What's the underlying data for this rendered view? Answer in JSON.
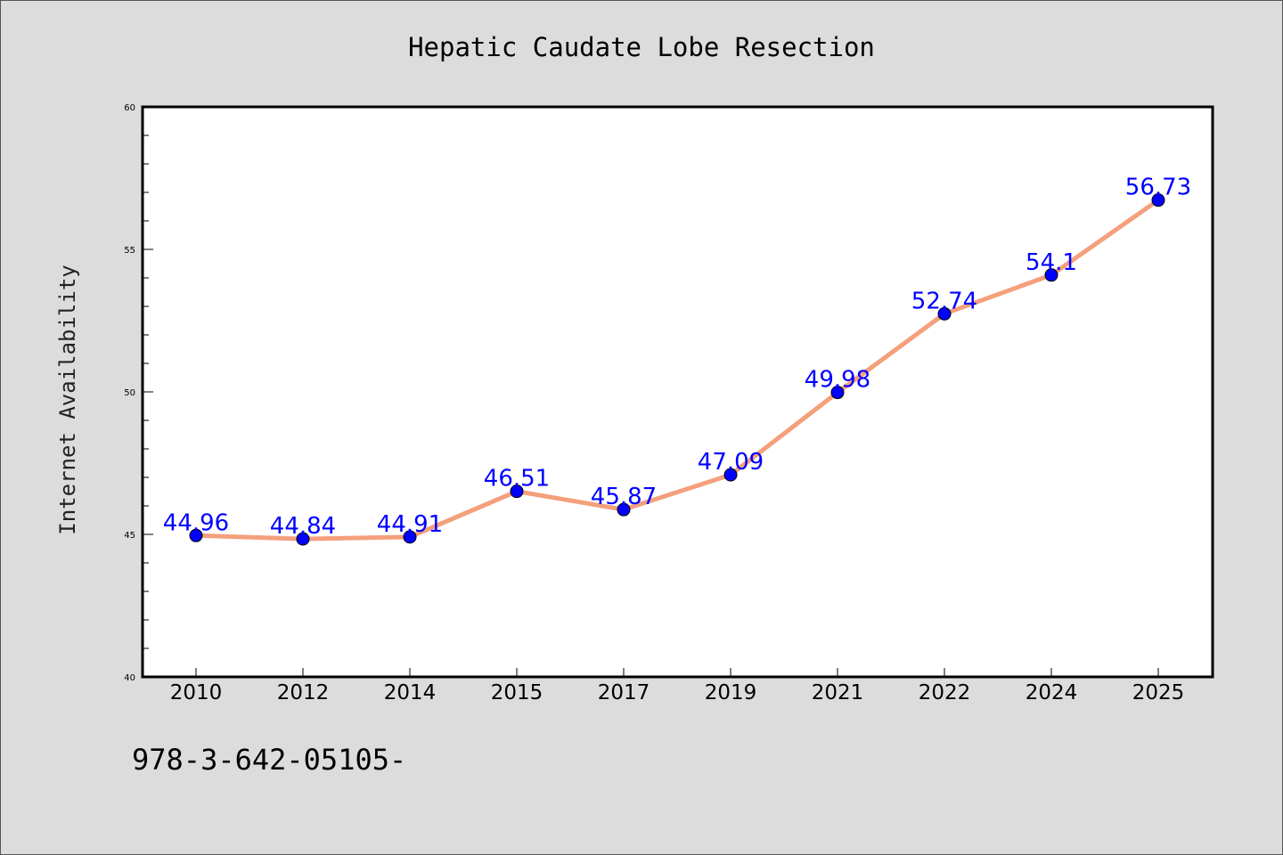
{
  "chart_data": {
    "type": "line",
    "title": "Hepatic Caudate Lobe Resection",
    "xlabel": "",
    "ylabel": "Internet Availability",
    "categories": [
      "2010",
      "2012",
      "2014",
      "2015",
      "2017",
      "2019",
      "2021",
      "2022",
      "2024",
      "2025"
    ],
    "series": [
      {
        "values": [
          44.96,
          44.84,
          44.91,
          46.51,
          45.87,
          47.09,
          49.98,
          52.74,
          54.1,
          56.73
        ],
        "labels": [
          "44.96",
          "44.84",
          "44.91",
          "46.51",
          "45.87",
          "47.09",
          "49.98",
          "52.74",
          "54.1",
          "56.73"
        ]
      }
    ],
    "ylim": [
      40,
      60
    ],
    "yticks": [
      "40",
      "45",
      "50",
      "55",
      "60"
    ],
    "grid": false,
    "colors": {
      "line": "#f4a07c",
      "marker": "#0000ff",
      "data_label": "#0000ff",
      "plot_background": "#ffffff",
      "figure_background": "#dcdcdc"
    }
  },
  "footer": {
    "text": "978-3-642-05105-"
  }
}
